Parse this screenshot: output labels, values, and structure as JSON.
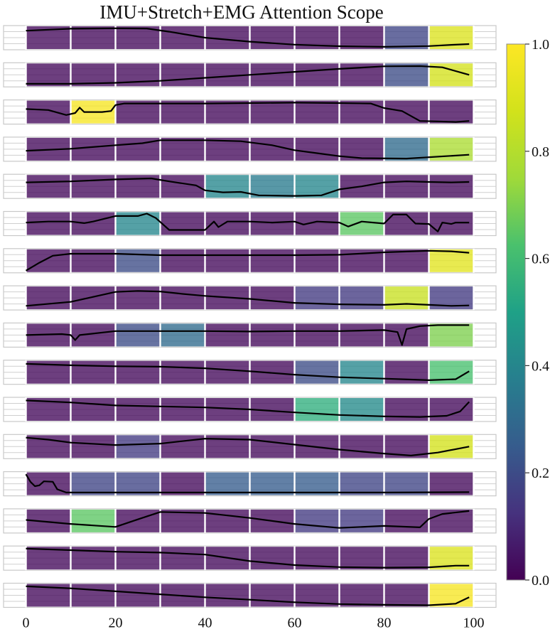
{
  "chart_data": {
    "type": "heatmap",
    "title": "IMU+Stretch+EMG Attention Scope",
    "xlim": [
      -5,
      105
    ],
    "ylim": [
      0,
      1
    ],
    "x_ticks": [
      "0",
      "20",
      "40",
      "60",
      "80",
      "100"
    ],
    "x_tick_values": [
      0,
      20,
      40,
      60,
      80,
      100
    ],
    "segment_edges": [
      0,
      10,
      20,
      30,
      40,
      50,
      60,
      70,
      80,
      90,
      100
    ],
    "colormap": "viridis",
    "colorbar": {
      "range": [
        0.0,
        1.0
      ],
      "ticks": [
        "0.0",
        "0.2",
        "0.4",
        "0.6",
        "0.8",
        "1.0"
      ],
      "tick_values": [
        0,
        0.2,
        0.4,
        0.6,
        0.8,
        1.0
      ]
    },
    "rows": [
      {
        "attention": [
          0.02,
          0.02,
          0.02,
          0.02,
          0.02,
          0.02,
          0.02,
          0.02,
          0.18,
          0.9
        ],
        "curve": [
          [
            0,
            0.85
          ],
          [
            5,
            0.9
          ],
          [
            10,
            0.95
          ],
          [
            20,
            0.97
          ],
          [
            27,
            0.96
          ],
          [
            32,
            0.8
          ],
          [
            40,
            0.5
          ],
          [
            50,
            0.3
          ],
          [
            60,
            0.15
          ],
          [
            70,
            0.07
          ],
          [
            80,
            0.04
          ],
          [
            90,
            0.08
          ],
          [
            95,
            0.14
          ],
          [
            99,
            0.18
          ]
        ]
      },
      {
        "attention": [
          0.02,
          0.02,
          0.02,
          0.02,
          0.02,
          0.02,
          0.02,
          0.02,
          0.2,
          0.88
        ],
        "curve": [
          [
            0,
            0.05
          ],
          [
            10,
            0.05
          ],
          [
            20,
            0.1
          ],
          [
            30,
            0.2
          ],
          [
            40,
            0.35
          ],
          [
            50,
            0.5
          ],
          [
            60,
            0.65
          ],
          [
            70,
            0.8
          ],
          [
            80,
            0.93
          ],
          [
            88,
            0.94
          ],
          [
            93,
            0.88
          ],
          [
            99,
            0.5
          ]
        ]
      },
      {
        "attention": [
          0.02,
          0.98,
          0.02,
          0.02,
          0.02,
          0.02,
          0.02,
          0.02,
          0.02,
          0.02
        ],
        "curve": [
          [
            0,
            0.65
          ],
          [
            5,
            0.6
          ],
          [
            9,
            0.35
          ],
          [
            11,
            0.45
          ],
          [
            12,
            0.72
          ],
          [
            13,
            0.5
          ],
          [
            17,
            0.5
          ],
          [
            19,
            0.55
          ],
          [
            20,
            0.85
          ],
          [
            22,
            0.93
          ],
          [
            30,
            0.93
          ],
          [
            40,
            0.93
          ],
          [
            50,
            0.95
          ],
          [
            60,
            0.97
          ],
          [
            70,
            0.95
          ],
          [
            77,
            0.93
          ],
          [
            80,
            0.7
          ],
          [
            84,
            0.55
          ],
          [
            88,
            0.05
          ],
          [
            92,
            0.03
          ],
          [
            96,
            0.0
          ],
          [
            99,
            0.05
          ]
        ]
      },
      {
        "attention": [
          0.02,
          0.02,
          0.02,
          0.02,
          0.02,
          0.02,
          0.02,
          0.02,
          0.3,
          0.78
        ],
        "curve": [
          [
            0,
            0.42
          ],
          [
            10,
            0.52
          ],
          [
            20,
            0.7
          ],
          [
            26,
            0.8
          ],
          [
            30,
            0.95
          ],
          [
            40,
            0.95
          ],
          [
            48,
            0.9
          ],
          [
            55,
            0.7
          ],
          [
            60,
            0.45
          ],
          [
            65,
            0.3
          ],
          [
            70,
            0.15
          ],
          [
            75,
            0.05
          ],
          [
            85,
            0.03
          ],
          [
            99,
            0.22
          ]
        ]
      },
      {
        "attention": [
          0.02,
          0.02,
          0.02,
          0.02,
          0.4,
          0.36,
          0.4,
          0.02,
          0.02,
          0.02
        ],
        "curve": [
          [
            0,
            0.7
          ],
          [
            10,
            0.75
          ],
          [
            20,
            0.85
          ],
          [
            28,
            0.9
          ],
          [
            32,
            0.75
          ],
          [
            38,
            0.55
          ],
          [
            40,
            0.3
          ],
          [
            44,
            0.2
          ],
          [
            48,
            0.22
          ],
          [
            52,
            0.05
          ],
          [
            60,
            0.02
          ],
          [
            66,
            0.05
          ],
          [
            70,
            0.35
          ],
          [
            75,
            0.5
          ],
          [
            80,
            0.7
          ],
          [
            85,
            0.75
          ],
          [
            90,
            0.72
          ],
          [
            95,
            0.7
          ],
          [
            99,
            0.72
          ]
        ]
      },
      {
        "attention": [
          0.02,
          0.02,
          0.4,
          0.02,
          0.02,
          0.02,
          0.02,
          0.65,
          0.02,
          0.02
        ],
        "curve": [
          [
            0,
            0.55
          ],
          [
            5,
            0.6
          ],
          [
            10,
            0.6
          ],
          [
            13,
            0.52
          ],
          [
            15,
            0.6
          ],
          [
            20,
            0.88
          ],
          [
            25,
            0.88
          ],
          [
            27,
            1.0
          ],
          [
            29,
            0.78
          ],
          [
            32,
            0.18
          ],
          [
            40,
            0.18
          ],
          [
            42,
            0.6
          ],
          [
            43,
            0.32
          ],
          [
            45,
            0.6
          ],
          [
            50,
            0.6
          ],
          [
            55,
            0.55
          ],
          [
            60,
            0.6
          ],
          [
            62,
            0.45
          ],
          [
            65,
            0.6
          ],
          [
            70,
            0.55
          ],
          [
            72,
            0.35
          ],
          [
            75,
            0.6
          ],
          [
            80,
            0.5
          ],
          [
            82,
            0.95
          ],
          [
            85,
            0.95
          ],
          [
            87,
            0.5
          ],
          [
            90,
            0.48
          ],
          [
            92,
            0.1
          ],
          [
            93,
            0.55
          ],
          [
            95,
            0.48
          ],
          [
            96,
            0.55
          ],
          [
            99,
            0.55
          ]
        ]
      },
      {
        "attention": [
          0.02,
          0.02,
          0.2,
          0.02,
          0.02,
          0.02,
          0.02,
          0.02,
          0.02,
          0.92
        ],
        "curve": [
          [
            0,
            0.0
          ],
          [
            3,
            0.4
          ],
          [
            6,
            0.75
          ],
          [
            10,
            0.85
          ],
          [
            20,
            0.85
          ],
          [
            30,
            0.78
          ],
          [
            40,
            0.78
          ],
          [
            50,
            0.78
          ],
          [
            60,
            0.78
          ],
          [
            70,
            0.8
          ],
          [
            80,
            0.92
          ],
          [
            90,
            1.0
          ],
          [
            95,
            0.97
          ],
          [
            99,
            0.9
          ]
        ]
      },
      {
        "attention": [
          0.02,
          0.02,
          0.02,
          0.02,
          0.02,
          0.02,
          0.15,
          0.15,
          0.85,
          0.15
        ],
        "curve": [
          [
            0,
            0.1
          ],
          [
            10,
            0.3
          ],
          [
            15,
            0.55
          ],
          [
            20,
            0.8
          ],
          [
            25,
            0.85
          ],
          [
            30,
            0.82
          ],
          [
            35,
            0.7
          ],
          [
            40,
            0.6
          ],
          [
            50,
            0.45
          ],
          [
            60,
            0.25
          ],
          [
            70,
            0.18
          ],
          [
            80,
            0.15
          ],
          [
            85,
            0.2
          ],
          [
            90,
            0.15
          ],
          [
            95,
            0.1
          ],
          [
            99,
            0.12
          ]
        ]
      },
      {
        "attention": [
          0.02,
          0.02,
          0.2,
          0.3,
          0.02,
          0.02,
          0.02,
          0.02,
          0.02,
          0.7
        ],
        "curve": [
          [
            0,
            0.5
          ],
          [
            8,
            0.55
          ],
          [
            10,
            0.5
          ],
          [
            11,
            0.25
          ],
          [
            12,
            0.5
          ],
          [
            20,
            0.7
          ],
          [
            30,
            0.7
          ],
          [
            40,
            0.7
          ],
          [
            50,
            0.68
          ],
          [
            60,
            0.7
          ],
          [
            70,
            0.7
          ],
          [
            80,
            0.75
          ],
          [
            83,
            0.65
          ],
          [
            84,
            0.0
          ],
          [
            85,
            0.8
          ],
          [
            88,
            0.95
          ],
          [
            92,
            1.0
          ],
          [
            99,
            1.0
          ]
        ]
      },
      {
        "attention": [
          0.02,
          0.02,
          0.02,
          0.02,
          0.02,
          0.02,
          0.2,
          0.4,
          0.02,
          0.62
        ],
        "curve": [
          [
            0,
            0.92
          ],
          [
            10,
            0.85
          ],
          [
            20,
            0.8
          ],
          [
            30,
            0.78
          ],
          [
            40,
            0.7
          ],
          [
            50,
            0.55
          ],
          [
            60,
            0.38
          ],
          [
            70,
            0.25
          ],
          [
            80,
            0.18
          ],
          [
            90,
            0.1
          ],
          [
            96,
            0.15
          ],
          [
            99,
            0.55
          ]
        ]
      },
      {
        "attention": [
          0.02,
          0.02,
          0.02,
          0.02,
          0.02,
          0.02,
          0.55,
          0.42,
          0.02,
          0.02
        ],
        "curve": [
          [
            0,
            0.95
          ],
          [
            10,
            0.85
          ],
          [
            20,
            0.7
          ],
          [
            30,
            0.65
          ],
          [
            40,
            0.6
          ],
          [
            50,
            0.5
          ],
          [
            60,
            0.35
          ],
          [
            70,
            0.22
          ],
          [
            80,
            0.15
          ],
          [
            88,
            0.12
          ],
          [
            94,
            0.18
          ],
          [
            97,
            0.4
          ],
          [
            99,
            0.88
          ]
        ]
      },
      {
        "attention": [
          0.02,
          0.02,
          0.15,
          0.02,
          0.02,
          0.02,
          0.02,
          0.02,
          0.02,
          0.88
        ],
        "curve": [
          [
            0,
            0.95
          ],
          [
            5,
            0.85
          ],
          [
            10,
            0.7
          ],
          [
            20,
            0.58
          ],
          [
            30,
            0.65
          ],
          [
            40,
            0.9
          ],
          [
            50,
            0.85
          ],
          [
            60,
            0.6
          ],
          [
            70,
            0.35
          ],
          [
            80,
            0.15
          ],
          [
            86,
            0.05
          ],
          [
            92,
            0.2
          ],
          [
            99,
            0.5
          ]
        ]
      },
      {
        "attention": [
          0.02,
          0.18,
          0.18,
          0.02,
          0.25,
          0.25,
          0.25,
          0.18,
          0.18,
          0.02
        ],
        "curve": [
          [
            0,
            0.98
          ],
          [
            1,
            0.6
          ],
          [
            2,
            0.38
          ],
          [
            3,
            0.42
          ],
          [
            4,
            0.62
          ],
          [
            6,
            0.6
          ],
          [
            7,
            0.22
          ],
          [
            9,
            0.06
          ],
          [
            20,
            0.06
          ],
          [
            40,
            0.06
          ],
          [
            60,
            0.06
          ],
          [
            80,
            0.06
          ],
          [
            90,
            0.07
          ],
          [
            99,
            0.08
          ]
        ]
      },
      {
        "attention": [
          0.02,
          0.65,
          0.02,
          0.02,
          0.02,
          0.02,
          0.15,
          0.15,
          0.02,
          0.02
        ],
        "curve": [
          [
            0,
            0.55
          ],
          [
            10,
            0.35
          ],
          [
            20,
            0.2
          ],
          [
            25,
            0.58
          ],
          [
            30,
            0.95
          ],
          [
            40,
            0.9
          ],
          [
            50,
            0.65
          ],
          [
            60,
            0.35
          ],
          [
            70,
            0.15
          ],
          [
            80,
            0.25
          ],
          [
            88,
            0.18
          ],
          [
            90,
            0.6
          ],
          [
            93,
            0.85
          ],
          [
            99,
            1.0
          ]
        ]
      },
      {
        "attention": [
          0.02,
          0.02,
          0.02,
          0.02,
          0.02,
          0.02,
          0.02,
          0.02,
          0.02,
          0.9
        ],
        "curve": [
          [
            0,
            0.98
          ],
          [
            10,
            0.9
          ],
          [
            20,
            0.82
          ],
          [
            30,
            0.78
          ],
          [
            40,
            0.68
          ],
          [
            50,
            0.35
          ],
          [
            60,
            0.15
          ],
          [
            70,
            0.05
          ],
          [
            80,
            0.02
          ],
          [
            90,
            0.04
          ],
          [
            96,
            0.12
          ],
          [
            99,
            0.12
          ]
        ]
      },
      {
        "attention": [
          0.02,
          0.02,
          0.02,
          0.02,
          0.02,
          0.02,
          0.02,
          0.02,
          0.02,
          0.98
        ],
        "curve": [
          [
            0,
            0.95
          ],
          [
            10,
            0.85
          ],
          [
            20,
            0.7
          ],
          [
            30,
            0.55
          ],
          [
            40,
            0.4
          ],
          [
            50,
            0.28
          ],
          [
            60,
            0.15
          ],
          [
            70,
            0.06
          ],
          [
            80,
            0.02
          ],
          [
            90,
            0.0
          ],
          [
            96,
            0.08
          ],
          [
            99,
            0.4
          ]
        ]
      }
    ]
  }
}
